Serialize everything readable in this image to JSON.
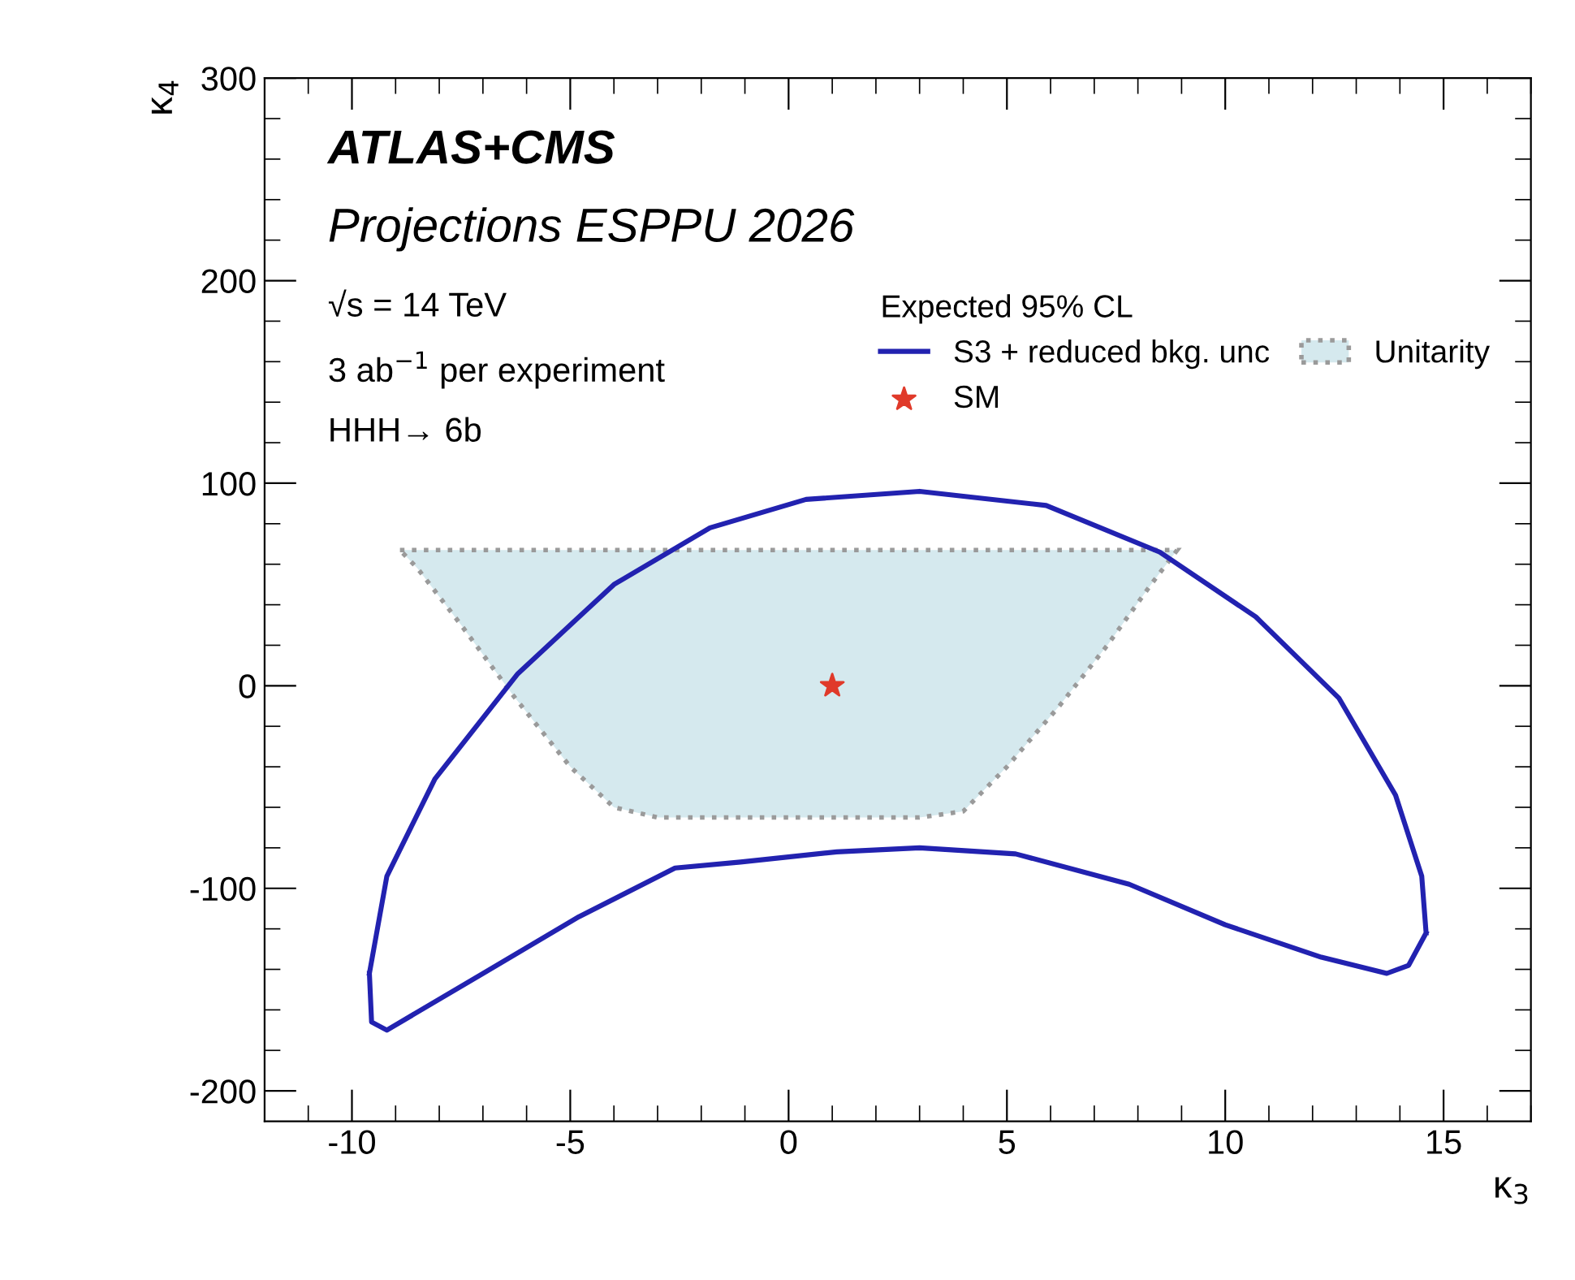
{
  "chart_data": {
    "type": "line",
    "xlabel": "κ$_{3}$",
    "ylabel": "κ$_{4}$",
    "legend_title": "Expected 95% CL",
    "annotations": [
      "ATLAS+CMS",
      "Projections ESPPU 2026",
      "√s = 14 TeV",
      "3 ab$^{−1}$ per experiment",
      "HHH→ 6b"
    ],
    "xlim": [
      -12,
      17
    ],
    "xticks": [
      -10,
      -5,
      0,
      5,
      10,
      15
    ],
    "ylim": [
      -215,
      300
    ],
    "yticks": [
      -200,
      -100,
      0,
      100,
      200,
      300
    ],
    "legend": "top right",
    "grid": false,
    "series": [
      {
        "name": "Unitarity",
        "type": "area",
        "color": "#d5e9ee",
        "line_style": "dotted",
        "x": [
          -8.9,
          8.9,
          8.3,
          7.3,
          6.2,
          5.0,
          4.0,
          3.0,
          -3.0,
          -4.0,
          -5.0,
          -6.3,
          -7.5,
          -8.5
        ],
        "values": [
          67,
          67,
          50,
          20,
          -10,
          -40,
          -62,
          -65,
          -65,
          -60,
          -40,
          -5,
          30,
          58
        ]
      },
      {
        "name": "S3 + reduced bkg. unc",
        "color": "#2222b0",
        "line_style": "solid",
        "marker": "none",
        "x": [
          -9.6,
          -9.2,
          -8.1,
          -6.2,
          -4.0,
          -1.8,
          0.4,
          3.0,
          5.9,
          8.5,
          10.7,
          12.6,
          13.9,
          14.5,
          14.6,
          null,
          -9.6,
          -9.55,
          -9.2,
          -7.0,
          -4.8,
          -2.6,
          -1.1,
          1.1,
          3.0,
          5.2,
          7.8,
          10.0,
          12.2,
          13.7,
          14.2,
          14.6
        ],
        "values": [
          -142,
          -94,
          -46,
          6,
          50,
          78,
          92,
          96,
          89,
          66,
          34,
          -6,
          -54,
          -94,
          -122,
          null,
          -142,
          -166,
          -170,
          -142,
          -114,
          -90,
          -87,
          -82,
          -80,
          -83,
          -98,
          -118,
          -134,
          -142,
          -138,
          -122
        ]
      },
      {
        "name": "SM",
        "type": "scatter",
        "color": "#e03a2a",
        "marker": "star",
        "x": [
          1
        ],
        "values": [
          0
        ]
      }
    ]
  }
}
